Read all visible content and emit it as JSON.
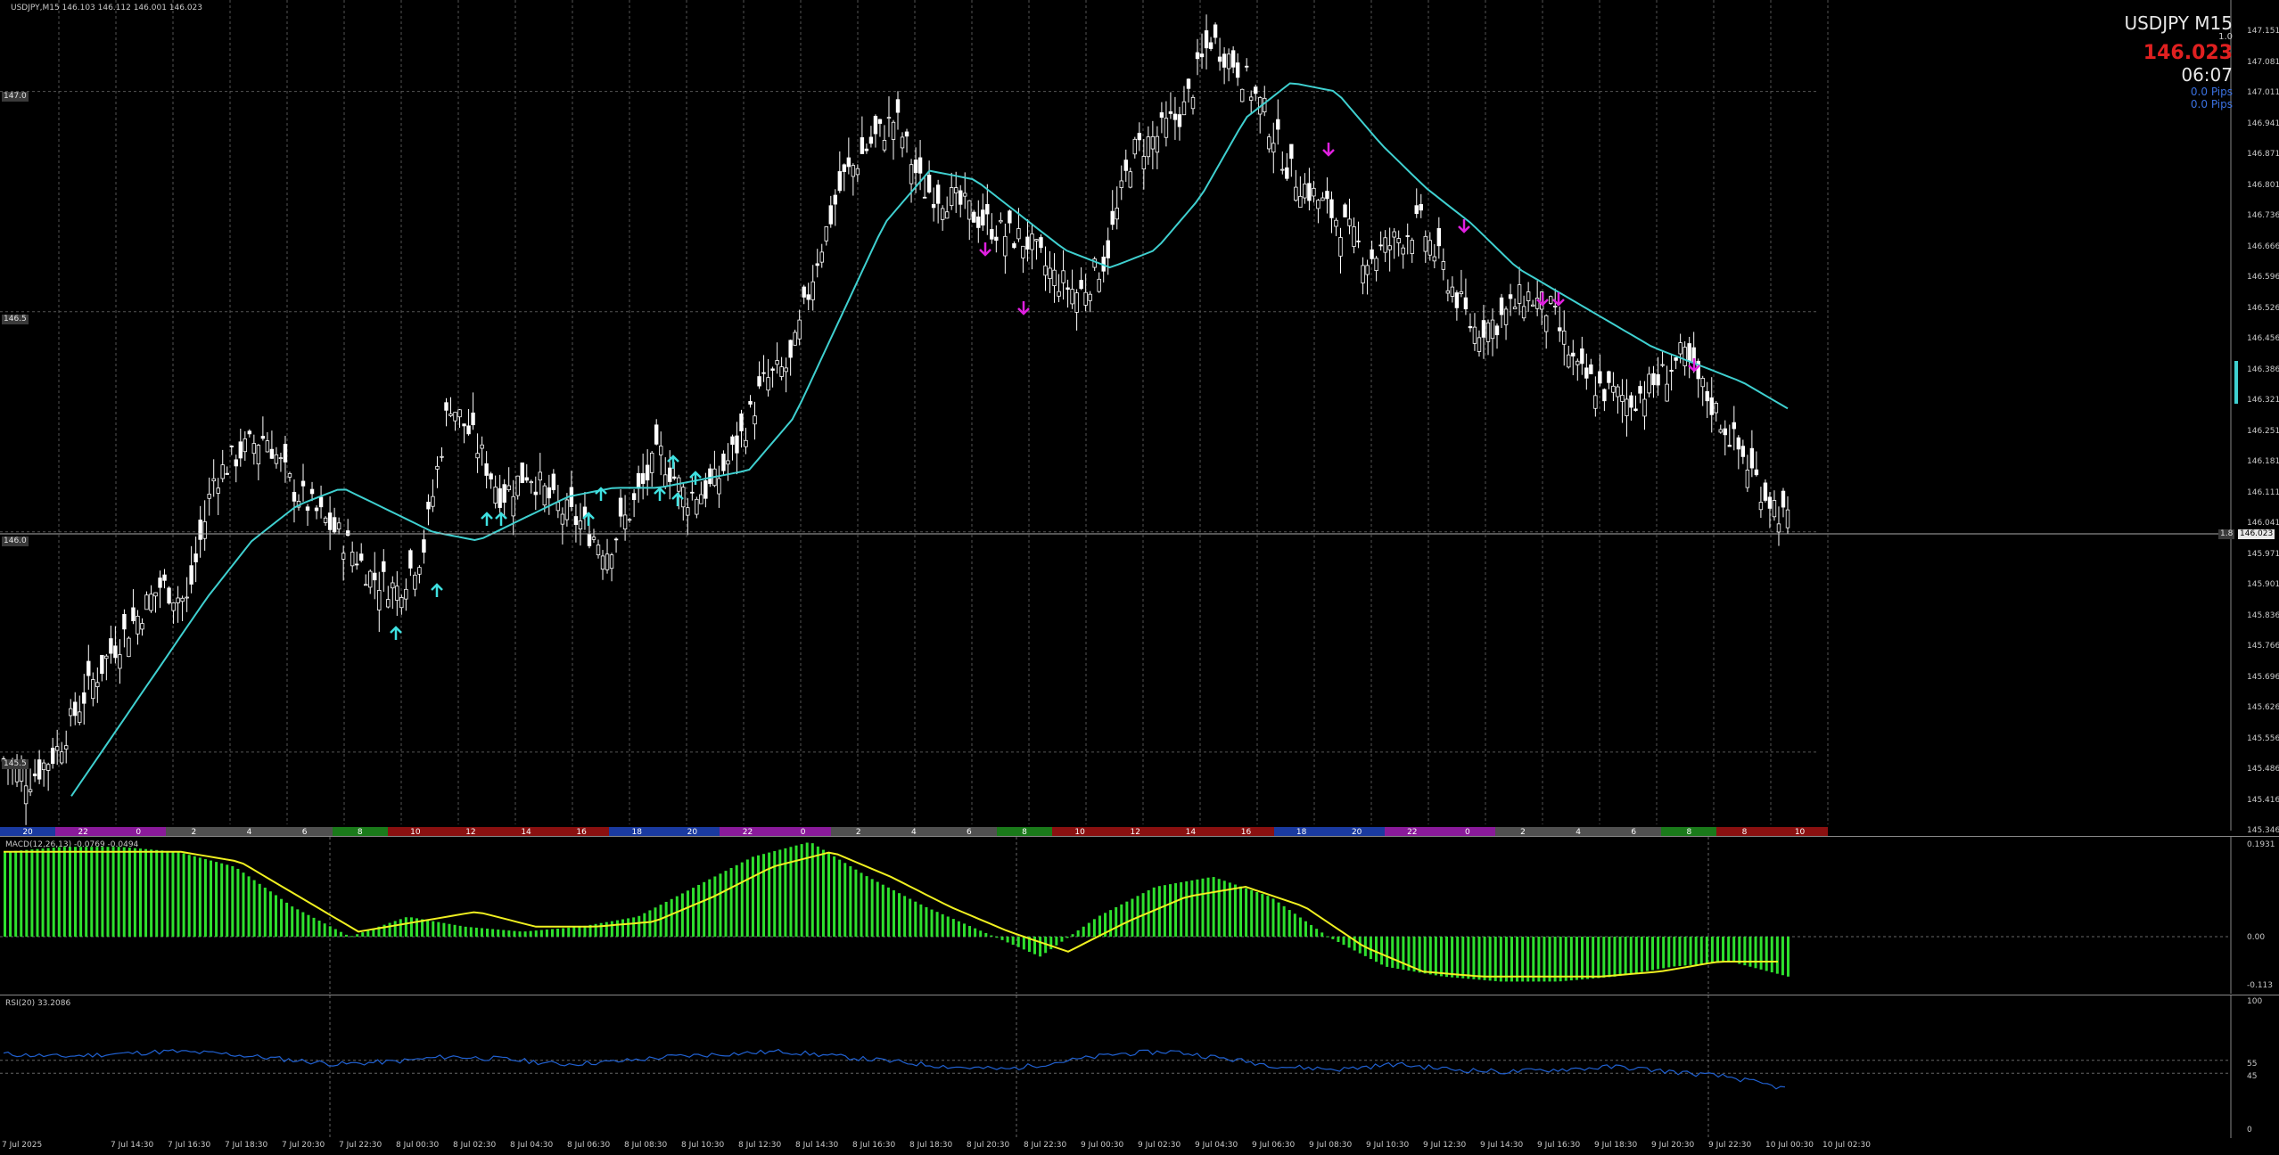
{
  "main_chart": {
    "header": "USDJPY,M15  146.103 146.112 146.001 146.023",
    "symbol": "USDJPY M15",
    "ratio": "1.0",
    "price": "146.023",
    "time": "06:07",
    "pips1": "0.0 Pips",
    "pips2": "0.0 Pips",
    "level_labels": [
      "147.0",
      "146.5",
      "146.0",
      "145.5"
    ],
    "current_label": "146.023",
    "current_tag": "1.8",
    "y_ticks": [
      "147.151",
      "147.081",
      "147.011",
      "146.941",
      "146.871",
      "146.801",
      "146.736",
      "146.666",
      "146.596",
      "146.526",
      "146.456",
      "146.386",
      "146.321",
      "146.251",
      "146.181",
      "146.111",
      "146.041",
      "145.971",
      "145.901",
      "145.836",
      "145.766",
      "145.696",
      "145.626",
      "145.556",
      "145.486",
      "145.416",
      "145.346"
    ],
    "colors": {
      "ma": "#3fd0d0",
      "up_arrow": "#3fe0e0",
      "down_arrow": "#e020e0",
      "candle": "#ffffff",
      "grid": "#555555",
      "current": "#e02020"
    }
  },
  "sessions": [
    {
      "label": "20",
      "color": "#1a3aa0"
    },
    {
      "label": "22",
      "color": "#8a1a9a"
    },
    {
      "label": "0",
      "color": "#8a1a9a"
    },
    {
      "label": "2",
      "color": "#505050"
    },
    {
      "label": "4",
      "color": "#505050"
    },
    {
      "label": "6",
      "color": "#505050"
    },
    {
      "label": "8",
      "color": "#1a7a1a"
    },
    {
      "label": "10",
      "color": "#8a1010"
    },
    {
      "label": "12",
      "color": "#8a1010"
    },
    {
      "label": "14",
      "color": "#8a1010"
    },
    {
      "label": "16",
      "color": "#8a1010"
    },
    {
      "label": "18",
      "color": "#1a3aa0"
    },
    {
      "label": "20",
      "color": "#1a3aa0"
    },
    {
      "label": "22",
      "color": "#8a1a9a"
    },
    {
      "label": "0",
      "color": "#8a1a9a"
    },
    {
      "label": "2",
      "color": "#505050"
    },
    {
      "label": "4",
      "color": "#505050"
    },
    {
      "label": "6",
      "color": "#505050"
    },
    {
      "label": "8",
      "color": "#1a7a1a"
    },
    {
      "label": "10",
      "color": "#8a1010"
    },
    {
      "label": "12",
      "color": "#8a1010"
    },
    {
      "label": "14",
      "color": "#8a1010"
    },
    {
      "label": "16",
      "color": "#8a1010"
    },
    {
      "label": "18",
      "color": "#1a3aa0"
    },
    {
      "label": "20",
      "color": "#1a3aa0"
    },
    {
      "label": "22",
      "color": "#8a1a9a"
    },
    {
      "label": "0",
      "color": "#8a1a9a"
    },
    {
      "label": "2",
      "color": "#505050"
    },
    {
      "label": "4",
      "color": "#505050"
    },
    {
      "label": "6",
      "color": "#505050"
    },
    {
      "label": "8",
      "color": "#1a7a1a"
    },
    {
      "label": "8",
      "color": "#8a1010"
    },
    {
      "label": "10",
      "color": "#8a1010"
    }
  ],
  "macd": {
    "header": "MACD(12,26,13) -0.0769 -0.0494",
    "y_ticks": [
      "0.1931",
      "0.00",
      "-0.113"
    ],
    "colors": {
      "hist": "#2ee02e",
      "signal": "#f0f020"
    }
  },
  "rsi": {
    "header": "RSI(20) 33.2086",
    "y_ticks": [
      "100",
      "55",
      "45",
      "0"
    ],
    "colors": {
      "line": "#2060d0"
    }
  },
  "x_ticks": [
    "7 Jul 2025",
    "7 Jul 14:30",
    "7 Jul 16:30",
    "7 Jul 18:30",
    "7 Jul 20:30",
    "7 Jul 22:30",
    "8 Jul 00:30",
    "8 Jul 02:30",
    "8 Jul 04:30",
    "8 Jul 06:30",
    "8 Jul 08:30",
    "8 Jul 10:30",
    "8 Jul 12:30",
    "8 Jul 14:30",
    "8 Jul 16:30",
    "8 Jul 18:30",
    "8 Jul 20:30",
    "8 Jul 22:30",
    "9 Jul 00:30",
    "9 Jul 02:30",
    "9 Jul 04:30",
    "9 Jul 06:30",
    "9 Jul 08:30",
    "9 Jul 10:30",
    "9 Jul 12:30",
    "9 Jul 14:30",
    "9 Jul 16:30",
    "9 Jul 18:30",
    "9 Jul 20:30",
    "9 Jul 22:30",
    "10 Jul 00:30",
    "10 Jul 02:30"
  ],
  "chart_data": {
    "type": "candlestick",
    "symbol": "USDJPY",
    "timeframe": "M15",
    "ylim": [
      145.346,
      147.151
    ],
    "close_path": [
      145.48,
      145.44,
      145.5,
      145.62,
      145.72,
      145.8,
      145.88,
      145.84,
      146.12,
      146.18,
      146.22,
      146.1,
      146.04,
      145.98,
      145.9,
      145.87,
      145.96,
      146.3,
      146.2,
      146.08,
      146.14,
      146.06,
      146.02,
      145.96,
      146.06,
      146.18,
      146.08,
      146.1,
      146.2,
      146.34,
      146.38,
      146.62,
      146.8,
      146.88,
      146.94,
      146.78,
      146.76,
      146.72,
      146.68,
      146.66,
      146.58,
      146.54,
      146.62,
      146.86,
      146.9,
      146.96,
      147.12,
      147.06,
      146.96,
      146.82,
      146.76,
      146.7,
      146.62,
      146.66,
      146.7,
      146.58,
      146.46,
      146.48,
      146.54,
      146.5,
      146.36,
      146.32,
      146.3,
      146.34,
      146.4,
      146.3,
      146.2,
      146.1,
      146.02
    ],
    "ma_path": [
      145.4,
      145.55,
      145.7,
      145.85,
      145.98,
      146.06,
      146.1,
      146.05,
      146.0,
      145.98,
      146.03,
      146.08,
      146.1,
      146.1,
      146.12,
      146.14,
      146.26,
      146.48,
      146.7,
      146.82,
      146.8,
      146.72,
      146.64,
      146.6,
      146.64,
      146.76,
      146.94,
      147.02,
      147.0,
      146.88,
      146.78,
      146.7,
      146.6,
      146.54,
      146.48,
      146.42,
      146.38,
      146.34,
      146.28
    ],
    "macd_hist_path": [
      0.17,
      0.18,
      0.18,
      0.17,
      0.14,
      0.06,
      0.0,
      0.04,
      0.02,
      0.01,
      0.02,
      0.04,
      0.1,
      0.16,
      0.19,
      0.12,
      0.06,
      0.01,
      -0.04,
      0.04,
      0.1,
      0.12,
      0.08,
      0.0,
      -0.06,
      -0.08,
      -0.09,
      -0.09,
      -0.08,
      -0.06,
      -0.05,
      -0.08
    ],
    "macd_signal_path": [
      0.17,
      0.17,
      0.17,
      0.17,
      0.15,
      0.08,
      0.01,
      0.03,
      0.05,
      0.02,
      0.02,
      0.03,
      0.08,
      0.14,
      0.17,
      0.12,
      0.06,
      0.01,
      -0.03,
      0.03,
      0.08,
      0.1,
      0.06,
      -0.02,
      -0.07,
      -0.08,
      -0.08,
      -0.08,
      -0.07,
      -0.05,
      -0.05
    ],
    "rsi_path": [
      60,
      58,
      60,
      62,
      60,
      56,
      52,
      54,
      58,
      56,
      52,
      54,
      58,
      60,
      62,
      58,
      54,
      50,
      48,
      54,
      60,
      62,
      56,
      50,
      48,
      52,
      48,
      46,
      48,
      50,
      46,
      42,
      33
    ]
  }
}
